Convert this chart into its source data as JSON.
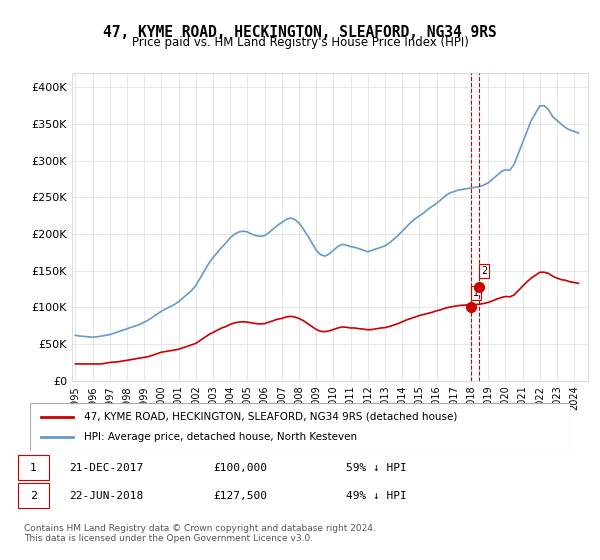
{
  "title": "47, KYME ROAD, HECKINGTON, SLEAFORD, NG34 9RS",
  "subtitle": "Price paid vs. HM Land Registry's House Price Index (HPI)",
  "xlabel": "",
  "ylabel": "",
  "ylim": [
    0,
    420000
  ],
  "yticks": [
    0,
    50000,
    100000,
    150000,
    200000,
    250000,
    300000,
    350000,
    400000
  ],
  "ytick_labels": [
    "£0",
    "£50K",
    "£100K",
    "£150K",
    "£200K",
    "£250K",
    "£300K",
    "£350K",
    "£400K"
  ],
  "hpi_color": "#6699cc",
  "price_color": "#cc0000",
  "vline_color": "#cc0000",
  "background_color": "#ffffff",
  "grid_color": "#dddddd",
  "legend_label_red": "47, KYME ROAD, HECKINGTON, SLEAFORD, NG34 9RS (detached house)",
  "legend_label_blue": "HPI: Average price, detached house, North Kesteven",
  "sale1_date_num": 2017.97,
  "sale1_price": 100000,
  "sale1_label": "1",
  "sale2_date_num": 2018.47,
  "sale2_price": 127500,
  "sale2_label": "2",
  "table_row1": [
    "1",
    "21-DEC-2017",
    "£100,000",
    "59% ↓ HPI"
  ],
  "table_row2": [
    "2",
    "22-JUN-2018",
    "£127,500",
    "49% ↓ HPI"
  ],
  "footer": "Contains HM Land Registry data © Crown copyright and database right 2024.\nThis data is licensed under the Open Government Licence v3.0.",
  "hpi_data": {
    "years": [
      1995.0,
      1995.25,
      1995.5,
      1995.75,
      1996.0,
      1996.25,
      1996.5,
      1996.75,
      1997.0,
      1997.25,
      1997.5,
      1997.75,
      1998.0,
      1998.25,
      1998.5,
      1998.75,
      1999.0,
      1999.25,
      1999.5,
      1999.75,
      2000.0,
      2000.25,
      2000.5,
      2000.75,
      2001.0,
      2001.25,
      2001.5,
      2001.75,
      2002.0,
      2002.25,
      2002.5,
      2002.75,
      2003.0,
      2003.25,
      2003.5,
      2003.75,
      2004.0,
      2004.25,
      2004.5,
      2004.75,
      2005.0,
      2005.25,
      2005.5,
      2005.75,
      2006.0,
      2006.25,
      2006.5,
      2006.75,
      2007.0,
      2007.25,
      2007.5,
      2007.75,
      2008.0,
      2008.25,
      2008.5,
      2008.75,
      2009.0,
      2009.25,
      2009.5,
      2009.75,
      2010.0,
      2010.25,
      2010.5,
      2010.75,
      2011.0,
      2011.25,
      2011.5,
      2011.75,
      2012.0,
      2012.25,
      2012.5,
      2012.75,
      2013.0,
      2013.25,
      2013.5,
      2013.75,
      2014.0,
      2014.25,
      2014.5,
      2014.75,
      2015.0,
      2015.25,
      2015.5,
      2015.75,
      2016.0,
      2016.25,
      2016.5,
      2016.75,
      2017.0,
      2017.25,
      2017.5,
      2017.75,
      2018.0,
      2018.25,
      2018.5,
      2018.75,
      2019.0,
      2019.25,
      2019.5,
      2019.75,
      2020.0,
      2020.25,
      2020.5,
      2020.75,
      2021.0,
      2021.25,
      2021.5,
      2021.75,
      2022.0,
      2022.25,
      2022.5,
      2022.75,
      2023.0,
      2023.25,
      2023.5,
      2023.75,
      2024.0,
      2024.25
    ],
    "values": [
      62000,
      61000,
      60500,
      60000,
      59500,
      60000,
      61000,
      62000,
      63000,
      65000,
      67000,
      69000,
      71000,
      73000,
      75000,
      77000,
      80000,
      83000,
      87000,
      91000,
      95000,
      98000,
      101000,
      104000,
      108000,
      113000,
      118000,
      123000,
      130000,
      140000,
      150000,
      160000,
      168000,
      175000,
      182000,
      188000,
      195000,
      200000,
      203000,
      204000,
      203000,
      200000,
      198000,
      197000,
      198000,
      202000,
      207000,
      212000,
      216000,
      220000,
      222000,
      220000,
      215000,
      207000,
      198000,
      188000,
      178000,
      172000,
      170000,
      173000,
      178000,
      183000,
      186000,
      185000,
      183000,
      182000,
      180000,
      178000,
      176000,
      178000,
      180000,
      182000,
      184000,
      188000,
      193000,
      198000,
      204000,
      210000,
      216000,
      221000,
      225000,
      229000,
      234000,
      238000,
      242000,
      247000,
      252000,
      256000,
      258000,
      260000,
      261000,
      262000,
      263000,
      264000,
      265000,
      267000,
      270000,
      275000,
      280000,
      285000,
      288000,
      287000,
      295000,
      310000,
      325000,
      340000,
      355000,
      365000,
      375000,
      375000,
      370000,
      360000,
      355000,
      350000,
      345000,
      342000,
      340000,
      338000
    ]
  },
  "price_data": {
    "years": [
      1995.0,
      1995.25,
      1995.5,
      1995.75,
      1996.0,
      1996.25,
      1996.5,
      1996.75,
      1997.0,
      1997.25,
      1997.5,
      1997.75,
      1998.0,
      1998.25,
      1998.5,
      1998.75,
      1999.0,
      1999.25,
      1999.5,
      1999.75,
      2000.0,
      2000.25,
      2000.5,
      2000.75,
      2001.0,
      2001.25,
      2001.5,
      2001.75,
      2002.0,
      2002.25,
      2002.5,
      2002.75,
      2003.0,
      2003.25,
      2003.5,
      2003.75,
      2004.0,
      2004.25,
      2004.5,
      2004.75,
      2005.0,
      2005.25,
      2005.5,
      2005.75,
      2006.0,
      2006.25,
      2006.5,
      2006.75,
      2007.0,
      2007.25,
      2007.5,
      2007.75,
      2008.0,
      2008.25,
      2008.5,
      2008.75,
      2009.0,
      2009.25,
      2009.5,
      2009.75,
      2010.0,
      2010.25,
      2010.5,
      2010.75,
      2011.0,
      2011.25,
      2011.5,
      2011.75,
      2012.0,
      2012.25,
      2012.5,
      2012.75,
      2013.0,
      2013.25,
      2013.5,
      2013.75,
      2014.0,
      2014.25,
      2014.5,
      2014.75,
      2015.0,
      2015.25,
      2015.5,
      2015.75,
      2016.0,
      2016.25,
      2016.5,
      2016.75,
      2017.0,
      2017.25,
      2017.5,
      2017.75,
      2018.0,
      2018.25,
      2018.5,
      2018.75,
      2019.0,
      2019.25,
      2019.5,
      2019.75,
      2020.0,
      2020.25,
      2020.5,
      2020.75,
      2021.0,
      2021.25,
      2021.5,
      2021.75,
      2022.0,
      2022.25,
      2022.5,
      2022.75,
      2023.0,
      2023.25,
      2023.5,
      2023.75,
      2024.0,
      2024.25
    ],
    "values": [
      23000,
      23000,
      23000,
      23000,
      23000,
      23000,
      23000,
      24000,
      25000,
      25500,
      26000,
      27000,
      28000,
      29000,
      30000,
      31000,
      32000,
      33000,
      35000,
      37000,
      39000,
      40000,
      41000,
      42000,
      43000,
      45000,
      47000,
      49000,
      51000,
      55000,
      59000,
      63000,
      66000,
      69000,
      72000,
      74000,
      77000,
      79000,
      80000,
      80500,
      80000,
      79000,
      78000,
      77500,
      78000,
      80000,
      82000,
      84000,
      85000,
      87000,
      88000,
      87000,
      85000,
      82000,
      78000,
      74000,
      70000,
      67500,
      67000,
      68000,
      70000,
      72000,
      73500,
      73000,
      72000,
      72000,
      71000,
      70500,
      69500,
      70000,
      71000,
      72000,
      72500,
      74000,
      76000,
      78000,
      80500,
      83000,
      85000,
      87000,
      89000,
      90500,
      92000,
      93500,
      95500,
      97000,
      99000,
      100500,
      101500,
      102500,
      103000,
      103500,
      103700,
      104000,
      104500,
      105500,
      107000,
      109000,
      111500,
      113500,
      115000,
      114500,
      117000,
      123000,
      129000,
      135000,
      140000,
      144000,
      148000,
      148000,
      146500,
      142500,
      140000,
      138000,
      137000,
      135000,
      134000,
      133000
    ]
  }
}
